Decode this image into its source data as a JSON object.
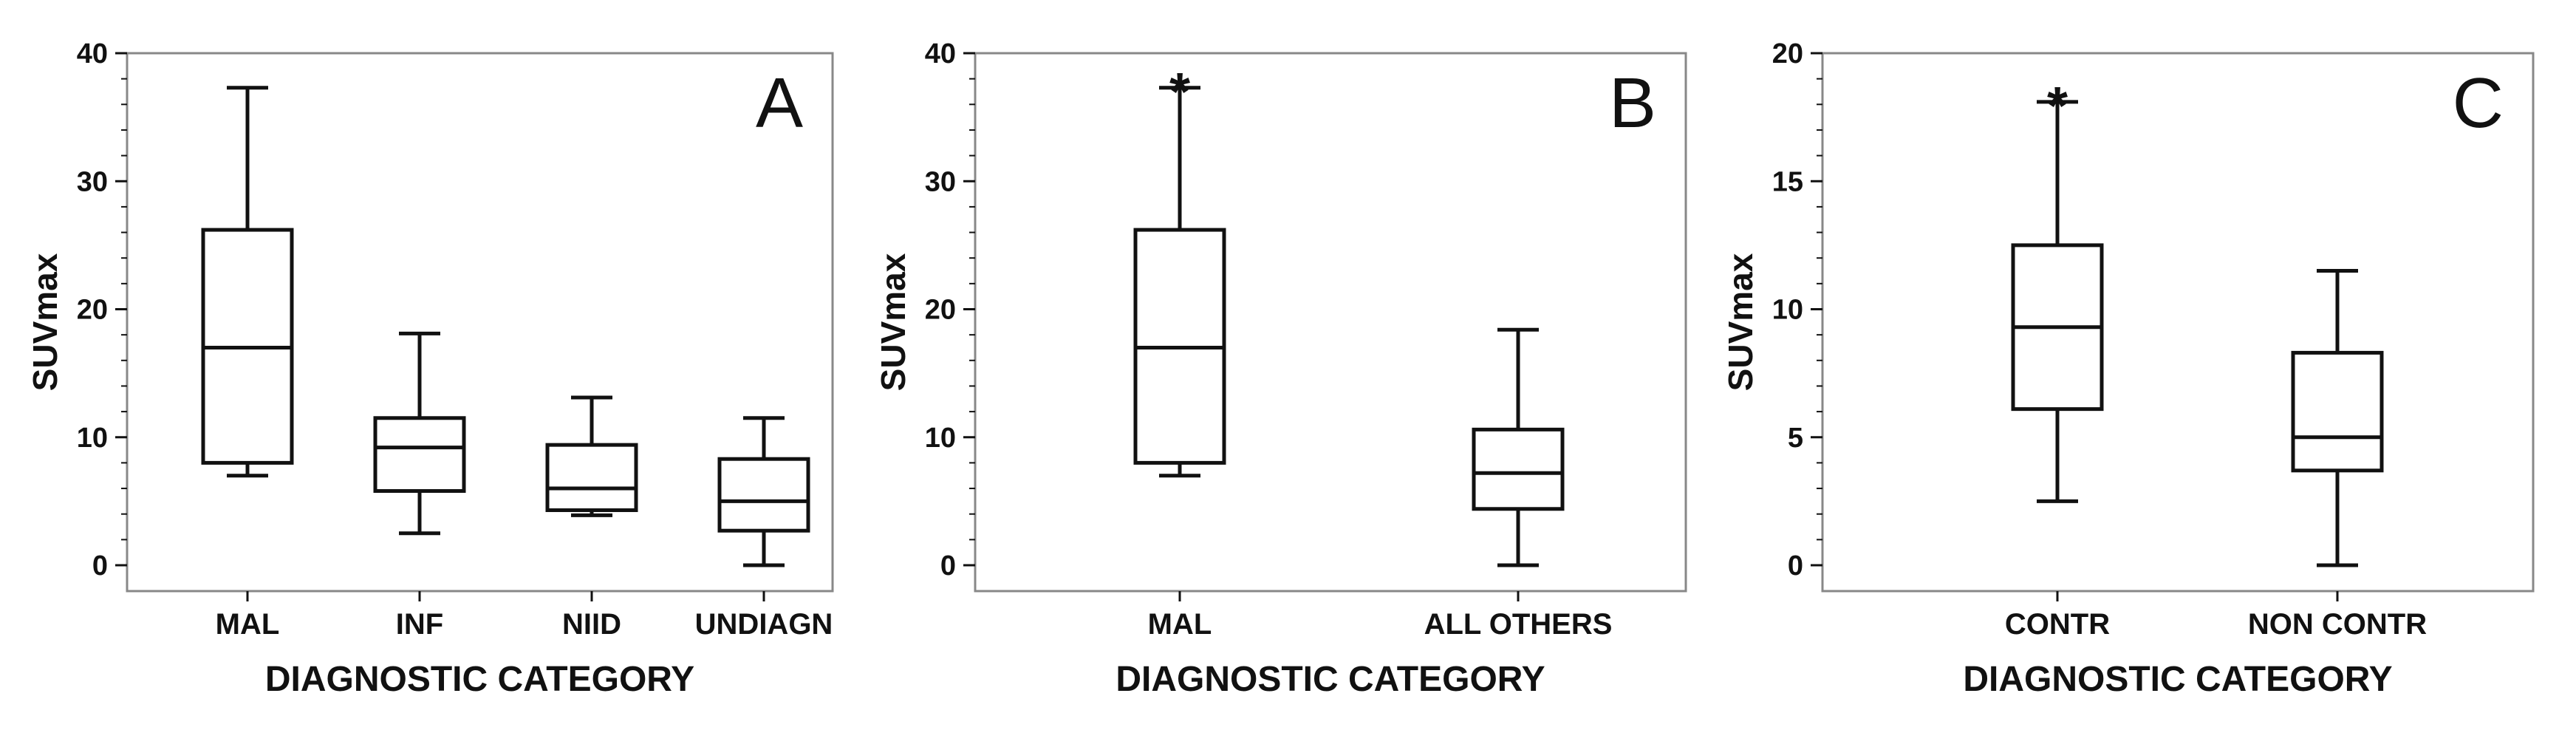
{
  "chart_data": [
    {
      "type": "box",
      "panel_label": "A",
      "xlabel": "DIAGNOSTIC CATEGORY",
      "ylabel": "SUVmax",
      "ylim": [
        0,
        40
      ],
      "yticks": [
        0,
        10,
        20,
        30,
        40
      ],
      "categories": [
        "MAL",
        "INF",
        "NIID",
        "UNDIAGN"
      ],
      "boxes": [
        {
          "min": 7.0,
          "q1": 8.0,
          "median": 17.0,
          "q3": 26.2,
          "max": 37.3
        },
        {
          "min": 2.5,
          "q1": 5.8,
          "median": 9.2,
          "q3": 11.5,
          "max": 18.1
        },
        {
          "min": 3.9,
          "q1": 4.3,
          "median": 6.0,
          "q3": 9.4,
          "max": 13.1
        },
        {
          "min": 0.0,
          "q1": 2.7,
          "median": 5.0,
          "q3": 8.3,
          "max": 11.5
        }
      ],
      "annotations": []
    },
    {
      "type": "box",
      "panel_label": "B",
      "xlabel": "DIAGNOSTIC CATEGORY",
      "ylabel": "SUVmax",
      "ylim": [
        0,
        40
      ],
      "yticks": [
        0,
        10,
        20,
        30,
        40
      ],
      "categories": [
        "MAL",
        "ALL OTHERS"
      ],
      "boxes": [
        {
          "min": 7.0,
          "q1": 8.0,
          "median": 17.0,
          "q3": 26.2,
          "max": 37.3
        },
        {
          "min": 0.0,
          "q1": 4.4,
          "median": 7.2,
          "q3": 10.6,
          "max": 18.4
        }
      ],
      "annotations": [
        {
          "category": "MAL",
          "text": "*"
        }
      ]
    },
    {
      "type": "box",
      "panel_label": "C",
      "xlabel": "DIAGNOSTIC CATEGORY",
      "ylabel": "SUVmax",
      "ylim": [
        0,
        20
      ],
      "yticks": [
        0,
        5,
        10,
        15,
        20
      ],
      "categories": [
        "CONTR",
        "NON CONTR"
      ],
      "boxes": [
        {
          "min": 2.5,
          "q1": 6.1,
          "median": 9.3,
          "q3": 12.5,
          "max": 18.1
        },
        {
          "min": 0.0,
          "q1": 3.7,
          "median": 5.0,
          "q3": 8.3,
          "max": 11.5
        }
      ],
      "annotations": [
        {
          "category": "CONTR",
          "text": "*"
        }
      ]
    }
  ],
  "colors": {
    "line": "#111111",
    "frame": "#888888",
    "background": "#ffffff"
  }
}
